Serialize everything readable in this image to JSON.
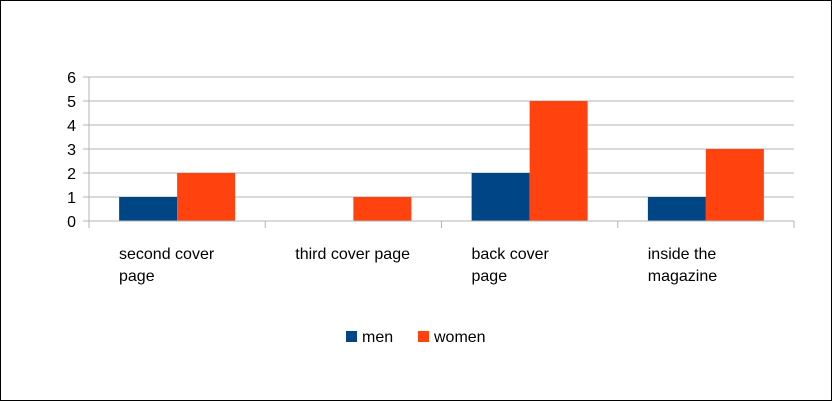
{
  "chart_data": {
    "type": "bar",
    "title": "",
    "xlabel": "",
    "ylabel": "",
    "ylim": [
      0,
      6
    ],
    "yticks": [
      "0",
      "1",
      "2",
      "3",
      "4",
      "5",
      "6"
    ],
    "categories": [
      [
        "second cover",
        "page"
      ],
      [
        "third cover page"
      ],
      [
        "back cover",
        "page"
      ],
      [
        "inside the",
        "magazine"
      ]
    ],
    "series": [
      {
        "name": "men",
        "color": "#004586",
        "values": [
          1,
          0,
          2,
          1
        ]
      },
      {
        "name": "women",
        "color": "#ff420e",
        "values": [
          2,
          1,
          5,
          3
        ]
      }
    ],
    "grid": true,
    "legend_position": "bottom"
  }
}
